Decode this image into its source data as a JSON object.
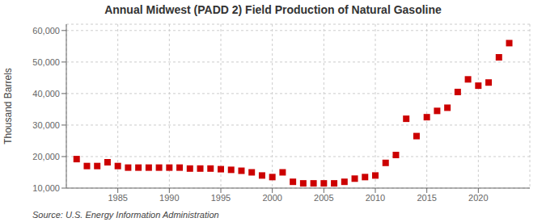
{
  "chart_data": {
    "type": "scatter",
    "title": "Annual Midwest (PADD 2) Field Production of Natural Gasoline",
    "ylabel": "Thousand Barrels",
    "annotations": [
      "Source: U.S. Energy Information Administration"
    ],
    "x": [
      1981,
      1982,
      1983,
      1984,
      1985,
      1986,
      1987,
      1988,
      1989,
      1990,
      1991,
      1992,
      1993,
      1994,
      1995,
      1996,
      1997,
      1998,
      1999,
      2000,
      2001,
      2002,
      2003,
      2004,
      2005,
      2006,
      2007,
      2008,
      2009,
      2010,
      2011,
      2012,
      2013,
      2014,
      2015,
      2016,
      2017,
      2018,
      2019,
      2020,
      2021,
      2022,
      2023
    ],
    "values": [
      19200,
      17000,
      17000,
      18200,
      17000,
      16500,
      16500,
      16500,
      16500,
      16500,
      16500,
      16200,
      16200,
      16200,
      16000,
      15800,
      15500,
      15000,
      14000,
      13500,
      15000,
      12000,
      11500,
      11500,
      11500,
      11500,
      12000,
      13000,
      13500,
      14000,
      18000,
      20500,
      32000,
      26500,
      32500,
      34500,
      35500,
      40500,
      44500,
      42500,
      43500,
      51500,
      56000
    ],
    "color": "#cc0000",
    "marker": "square",
    "xlim": [
      1980,
      2025
    ],
    "xticks": [
      1985,
      1990,
      1995,
      2000,
      2005,
      2010,
      2015,
      2020
    ],
    "ylim": [
      10000,
      62000
    ],
    "yticks": [
      {
        "value": 10000,
        "label": "10,000"
      },
      {
        "value": 20000,
        "label": "20,000"
      },
      {
        "value": 30000,
        "label": "30,000"
      },
      {
        "value": 40000,
        "label": "40,000"
      },
      {
        "value": 50000,
        "label": "50,000"
      },
      {
        "value": 60000,
        "label": "60,000"
      }
    ],
    "grid": true
  }
}
